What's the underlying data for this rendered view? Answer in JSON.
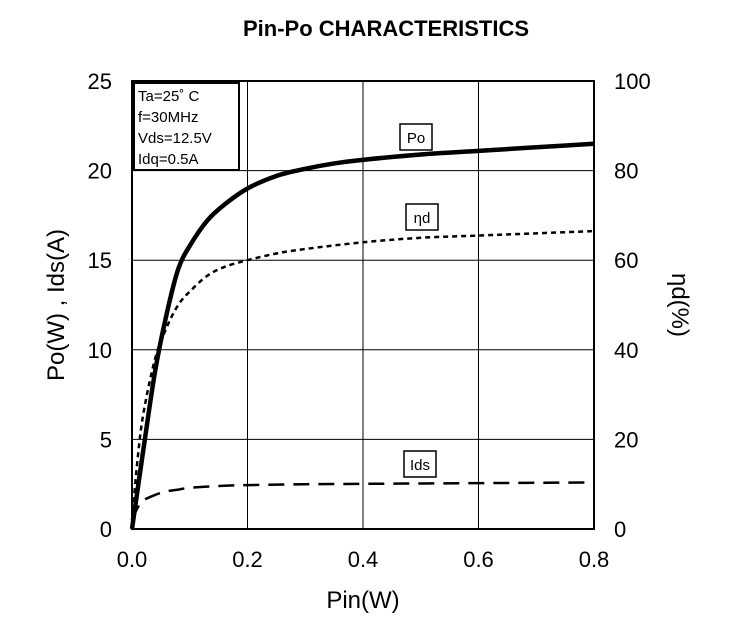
{
  "chart_data": {
    "type": "line",
    "title": "Pin-Po CHARACTERISTICS",
    "xlabel": "Pin(W)",
    "ylabel_left": "Po(W) , Ids(A)",
    "ylabel_right": "ηd(%)",
    "xlim": [
      0,
      0.8
    ],
    "ylim_left": [
      0,
      25
    ],
    "ylim_right": [
      0,
      100
    ],
    "x_ticks": [
      "0.0",
      "0.2",
      "0.4",
      "0.6",
      "0.8"
    ],
    "y_ticks_left": [
      "0",
      "5",
      "10",
      "15",
      "20",
      "25"
    ],
    "y_ticks_right": [
      "0",
      "20",
      "40",
      "60",
      "80",
      "100"
    ],
    "grid": true,
    "conditions": [
      "Ta=25˚ C",
      "f=30MHz",
      "Vds=12.5V",
      "Idq=0.5A"
    ],
    "series": [
      {
        "name": "Po",
        "axis": "left",
        "style": "solid-thick",
        "x": [
          0,
          0.02,
          0.04,
          0.06,
          0.08,
          0.1,
          0.13,
          0.16,
          0.2,
          0.25,
          0.3,
          0.35,
          0.4,
          0.5,
          0.6,
          0.7,
          0.8
        ],
        "y": [
          0,
          4.5,
          8.8,
          12.0,
          14.5,
          15.8,
          17.2,
          18.1,
          19.0,
          19.7,
          20.1,
          20.4,
          20.6,
          20.9,
          21.1,
          21.3,
          21.5
        ]
      },
      {
        "name": "ηd",
        "axis": "right",
        "style": "dotted",
        "x": [
          0,
          0.01,
          0.02,
          0.04,
          0.06,
          0.08,
          0.1,
          0.13,
          0.16,
          0.2,
          0.25,
          0.3,
          0.4,
          0.5,
          0.6,
          0.7,
          0.8
        ],
        "y": [
          2,
          16,
          26,
          38,
          45,
          50,
          53,
          56.5,
          58.5,
          60,
          61.5,
          62.5,
          64,
          65,
          65.5,
          66,
          66.5
        ]
      },
      {
        "name": "Ids",
        "axis": "left",
        "style": "dashed",
        "x": [
          0,
          0.01,
          0.02,
          0.04,
          0.06,
          0.08,
          0.1,
          0.15,
          0.2,
          0.3,
          0.4,
          0.5,
          0.6,
          0.7,
          0.8
        ],
        "y": [
          0.5,
          1.2,
          1.6,
          1.9,
          2.1,
          2.2,
          2.3,
          2.4,
          2.45,
          2.5,
          2.52,
          2.54,
          2.56,
          2.58,
          2.6
        ]
      }
    ]
  }
}
